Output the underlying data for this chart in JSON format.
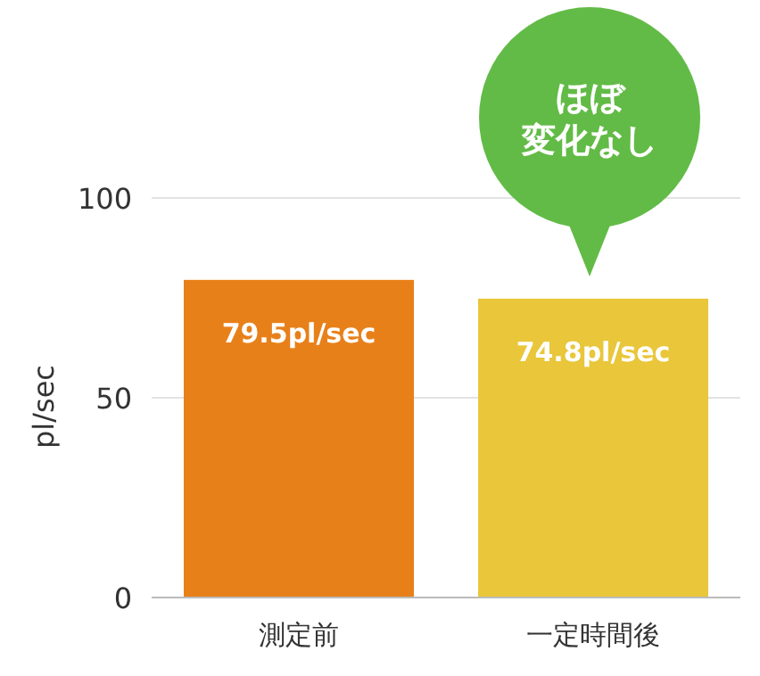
{
  "chart_data": {
    "type": "bar",
    "ylabel": "pl/sec",
    "categories": [
      "測定前",
      "一定時間後"
    ],
    "values": [
      79.5,
      74.8
    ],
    "colors": [
      "#e8801a",
      "#e9c63a"
    ],
    "value_labels": [
      "79.5pl/sec",
      "74.8pl/sec"
    ],
    "ylim": [
      0,
      100
    ],
    "yticks": [
      0,
      50,
      100
    ],
    "grid": "y",
    "annotations": [
      "ほぼ",
      "変化なし"
    ]
  }
}
